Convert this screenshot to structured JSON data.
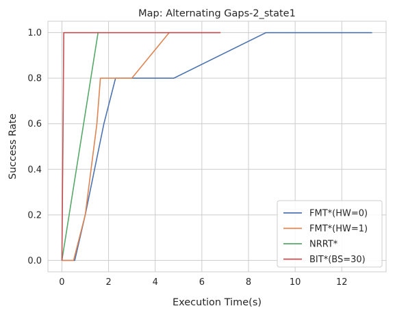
{
  "chart_data": {
    "type": "line",
    "title": "Map: Alternating Gaps-2_state1",
    "xlabel": "Execution Time(s)",
    "ylabel": "Success Rate",
    "xlim": [
      -0.6,
      13.9
    ],
    "ylim": [
      -0.05,
      1.05
    ],
    "xticks": [
      0,
      2,
      4,
      6,
      8,
      10,
      12
    ],
    "yticks": [
      0.0,
      0.2,
      0.4,
      0.6,
      0.8,
      1.0
    ],
    "xtick_labels": [
      "0",
      "2",
      "4",
      "6",
      "8",
      "10",
      "12"
    ],
    "ytick_labels": [
      "0.0",
      "0.2",
      "0.4",
      "0.6",
      "0.8",
      "1.0"
    ],
    "grid": true,
    "legend_position": "lower-right",
    "series": [
      {
        "name": "FMT*(HW=0)",
        "color": "#4c72b0",
        "x": [
          0.0,
          0.55,
          1.0,
          1.8,
          2.3,
          4.8,
          8.75,
          13.3
        ],
        "y": [
          0.0,
          0.0,
          0.2,
          0.6,
          0.8,
          0.8,
          1.0,
          1.0
        ]
      },
      {
        "name": "FMT*(HW=1)",
        "color": "#dd8452",
        "x": [
          0.0,
          0.5,
          1.0,
          1.5,
          1.65,
          3.0,
          4.6,
          6.8
        ],
        "y": [
          0.0,
          0.0,
          0.2,
          0.6,
          0.8,
          0.8,
          1.0,
          1.0
        ]
      },
      {
        "name": "NRRT*",
        "color": "#55a868",
        "x": [
          0.0,
          1.55,
          1.6
        ],
        "y": [
          0.0,
          1.0,
          1.0
        ]
      },
      {
        "name": "BIT*(BS=30)",
        "color": "#c44e52",
        "x": [
          0.0,
          0.05,
          0.08,
          6.8
        ],
        "y": [
          0.0,
          0.6,
          1.0,
          1.0
        ]
      }
    ]
  }
}
